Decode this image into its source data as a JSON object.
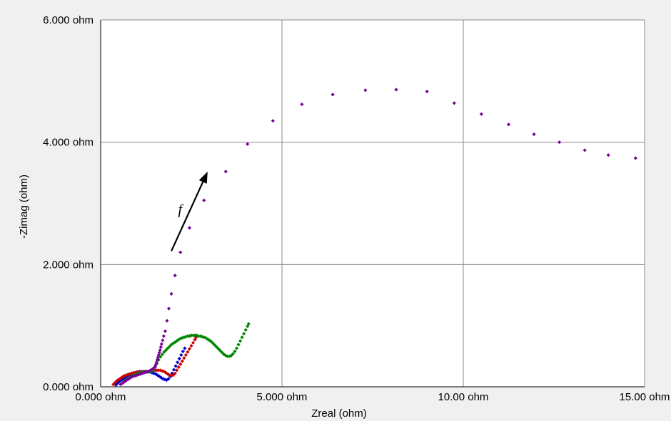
{
  "chart_data": {
    "type": "scatter",
    "title": "",
    "xlabel": "Zreal (ohm)",
    "ylabel": "-Zimag (ohm)",
    "xlim": [
      0,
      15
    ],
    "ylim": [
      0,
      6
    ],
    "x_ticks": [
      {
        "value": 0,
        "label": "0.000 ohm"
      },
      {
        "value": 5,
        "label": "5.000 ohm"
      },
      {
        "value": 10,
        "label": "10.00 ohm"
      },
      {
        "value": 15,
        "label": "15.00 ohm"
      }
    ],
    "y_ticks": [
      {
        "value": 0,
        "label": "0.000 ohm"
      },
      {
        "value": 2,
        "label": "2.000 ohm"
      },
      {
        "value": 4,
        "label": "4.000 ohm"
      },
      {
        "value": 6,
        "label": "6.000 ohm"
      }
    ],
    "grid": true,
    "annotation": {
      "text": "f",
      "from": [
        1.95,
        2.22
      ],
      "to": [
        2.95,
        3.52
      ]
    },
    "series": [
      {
        "color": "#0000cc",
        "points": [
          [
            0.42,
            0.03
          ],
          [
            0.47,
            0.06
          ],
          [
            0.52,
            0.09
          ],
          [
            0.57,
            0.11
          ],
          [
            0.62,
            0.13
          ],
          [
            0.67,
            0.15
          ],
          [
            0.72,
            0.17
          ],
          [
            0.77,
            0.19
          ],
          [
            0.82,
            0.2
          ],
          [
            0.87,
            0.21
          ],
          [
            0.92,
            0.22
          ],
          [
            0.97,
            0.23
          ],
          [
            1.02,
            0.24
          ],
          [
            1.07,
            0.25
          ],
          [
            1.12,
            0.25
          ],
          [
            1.17,
            0.25
          ],
          [
            1.22,
            0.25
          ],
          [
            1.27,
            0.25
          ],
          [
            1.32,
            0.25
          ],
          [
            1.37,
            0.24
          ],
          [
            1.42,
            0.23
          ],
          [
            1.47,
            0.22
          ],
          [
            1.52,
            0.21
          ],
          [
            1.57,
            0.19
          ],
          [
            1.62,
            0.17
          ],
          [
            1.67,
            0.15
          ],
          [
            1.72,
            0.13
          ],
          [
            1.77,
            0.12
          ],
          [
            1.82,
            0.11
          ],
          [
            1.87,
            0.13
          ],
          [
            1.92,
            0.17
          ],
          [
            1.97,
            0.22
          ],
          [
            2.02,
            0.28
          ],
          [
            2.07,
            0.34
          ],
          [
            2.12,
            0.4
          ],
          [
            2.17,
            0.46
          ],
          [
            2.22,
            0.52
          ],
          [
            2.27,
            0.58
          ],
          [
            2.32,
            0.63
          ]
        ]
      },
      {
        "color": "#cc0000",
        "points": [
          [
            0.35,
            0.04
          ],
          [
            0.4,
            0.07
          ],
          [
            0.45,
            0.1
          ],
          [
            0.5,
            0.12
          ],
          [
            0.55,
            0.14
          ],
          [
            0.6,
            0.16
          ],
          [
            0.65,
            0.18
          ],
          [
            0.7,
            0.19
          ],
          [
            0.75,
            0.2
          ],
          [
            0.8,
            0.21
          ],
          [
            0.85,
            0.22
          ],
          [
            0.9,
            0.23
          ],
          [
            0.95,
            0.23
          ],
          [
            1.0,
            0.24
          ],
          [
            1.05,
            0.24
          ],
          [
            1.1,
            0.24
          ],
          [
            1.15,
            0.24
          ],
          [
            1.2,
            0.24
          ],
          [
            1.25,
            0.25
          ],
          [
            1.3,
            0.25
          ],
          [
            1.35,
            0.26
          ],
          [
            1.4,
            0.26
          ],
          [
            1.45,
            0.27
          ],
          [
            1.5,
            0.27
          ],
          [
            1.55,
            0.27
          ],
          [
            1.6,
            0.27
          ],
          [
            1.65,
            0.27
          ],
          [
            1.7,
            0.26
          ],
          [
            1.75,
            0.25
          ],
          [
            1.8,
            0.23
          ],
          [
            1.85,
            0.21
          ],
          [
            1.9,
            0.19
          ],
          [
            1.95,
            0.18
          ],
          [
            2.0,
            0.19
          ],
          [
            2.05,
            0.22
          ],
          [
            2.1,
            0.27
          ],
          [
            2.15,
            0.32
          ],
          [
            2.2,
            0.37
          ],
          [
            2.25,
            0.42
          ],
          [
            2.3,
            0.47
          ],
          [
            2.35,
            0.52
          ],
          [
            2.4,
            0.57
          ],
          [
            2.45,
            0.62
          ],
          [
            2.5,
            0.67
          ],
          [
            2.55,
            0.72
          ],
          [
            2.6,
            0.77
          ],
          [
            2.63,
            0.81
          ]
        ]
      },
      {
        "color": "#008800",
        "points": [
          [
            0.6,
            0.06
          ],
          [
            0.65,
            0.09
          ],
          [
            0.7,
            0.11
          ],
          [
            0.75,
            0.13
          ],
          [
            0.8,
            0.15
          ],
          [
            0.85,
            0.17
          ],
          [
            0.9,
            0.19
          ],
          [
            0.95,
            0.2
          ],
          [
            1.0,
            0.21
          ],
          [
            1.05,
            0.22
          ],
          [
            1.1,
            0.23
          ],
          [
            1.15,
            0.23
          ],
          [
            1.2,
            0.24
          ],
          [
            1.25,
            0.24
          ],
          [
            1.3,
            0.24
          ],
          [
            1.35,
            0.25
          ],
          [
            1.4,
            0.25
          ],
          [
            1.45,
            0.27
          ],
          [
            1.5,
            0.32
          ],
          [
            1.55,
            0.38
          ],
          [
            1.6,
            0.44
          ],
          [
            1.65,
            0.49
          ],
          [
            1.7,
            0.53
          ],
          [
            1.75,
            0.57
          ],
          [
            1.8,
            0.6
          ],
          [
            1.85,
            0.63
          ],
          [
            1.9,
            0.66
          ],
          [
            1.95,
            0.69
          ],
          [
            2.0,
            0.71
          ],
          [
            2.05,
            0.73
          ],
          [
            2.1,
            0.75
          ],
          [
            2.15,
            0.77
          ],
          [
            2.2,
            0.79
          ],
          [
            2.25,
            0.8
          ],
          [
            2.3,
            0.81
          ],
          [
            2.35,
            0.82
          ],
          [
            2.4,
            0.83
          ],
          [
            2.45,
            0.83
          ],
          [
            2.5,
            0.84
          ],
          [
            2.55,
            0.84
          ],
          [
            2.6,
            0.84
          ],
          [
            2.65,
            0.84
          ],
          [
            2.7,
            0.83
          ],
          [
            2.75,
            0.83
          ],
          [
            2.8,
            0.82
          ],
          [
            2.85,
            0.81
          ],
          [
            2.9,
            0.8
          ],
          [
            2.95,
            0.78
          ],
          [
            3.0,
            0.76
          ],
          [
            3.05,
            0.74
          ],
          [
            3.1,
            0.71
          ],
          [
            3.15,
            0.68
          ],
          [
            3.2,
            0.65
          ],
          [
            3.25,
            0.62
          ],
          [
            3.3,
            0.59
          ],
          [
            3.35,
            0.56
          ],
          [
            3.4,
            0.53
          ],
          [
            3.45,
            0.51
          ],
          [
            3.5,
            0.5
          ],
          [
            3.55,
            0.5
          ],
          [
            3.6,
            0.51
          ],
          [
            3.65,
            0.54
          ],
          [
            3.7,
            0.58
          ],
          [
            3.75,
            0.63
          ],
          [
            3.8,
            0.69
          ],
          [
            3.85,
            0.75
          ],
          [
            3.9,
            0.81
          ],
          [
            3.95,
            0.87
          ],
          [
            4.0,
            0.93
          ],
          [
            4.05,
            0.99
          ],
          [
            4.08,
            1.03
          ]
        ]
      },
      {
        "color": "#7a0099",
        "points": [
          [
            0.55,
            0.04
          ],
          [
            0.6,
            0.06
          ],
          [
            0.65,
            0.08
          ],
          [
            0.7,
            0.1
          ],
          [
            0.75,
            0.12
          ],
          [
            0.8,
            0.14
          ],
          [
            0.85,
            0.16
          ],
          [
            0.9,
            0.17
          ],
          [
            0.95,
            0.18
          ],
          [
            1.0,
            0.19
          ],
          [
            1.05,
            0.2
          ],
          [
            1.1,
            0.21
          ],
          [
            1.15,
            0.22
          ],
          [
            1.2,
            0.23
          ],
          [
            1.25,
            0.24
          ],
          [
            1.3,
            0.25
          ],
          [
            1.35,
            0.26
          ],
          [
            1.4,
            0.28
          ],
          [
            1.45,
            0.3
          ],
          [
            1.5,
            0.33
          ],
          [
            1.52,
            0.36
          ],
          [
            1.54,
            0.4
          ],
          [
            1.56,
            0.44
          ],
          [
            1.58,
            0.48
          ],
          [
            1.6,
            0.52
          ],
          [
            1.62,
            0.56
          ],
          [
            1.64,
            0.6
          ],
          [
            1.66,
            0.65
          ],
          [
            1.68,
            0.7
          ],
          [
            1.71,
            0.76
          ],
          [
            1.74,
            0.83
          ],
          [
            1.78,
            0.91
          ],
          [
            1.83,
            1.08
          ],
          [
            1.88,
            1.28
          ],
          [
            1.95,
            1.52
          ],
          [
            2.05,
            1.82
          ],
          [
            2.2,
            2.2
          ],
          [
            2.45,
            2.6
          ],
          [
            2.85,
            3.05
          ],
          [
            3.45,
            3.52
          ],
          [
            4.05,
            3.97
          ],
          [
            4.75,
            4.35
          ],
          [
            5.55,
            4.62
          ],
          [
            6.4,
            4.78
          ],
          [
            7.3,
            4.85
          ],
          [
            8.15,
            4.86
          ],
          [
            9.0,
            4.83
          ],
          [
            9.75,
            4.64
          ],
          [
            10.5,
            4.46
          ],
          [
            11.25,
            4.29
          ],
          [
            11.95,
            4.13
          ],
          [
            12.65,
            4.0
          ],
          [
            13.35,
            3.87
          ],
          [
            14.0,
            3.79
          ],
          [
            14.75,
            3.74
          ]
        ]
      }
    ]
  }
}
